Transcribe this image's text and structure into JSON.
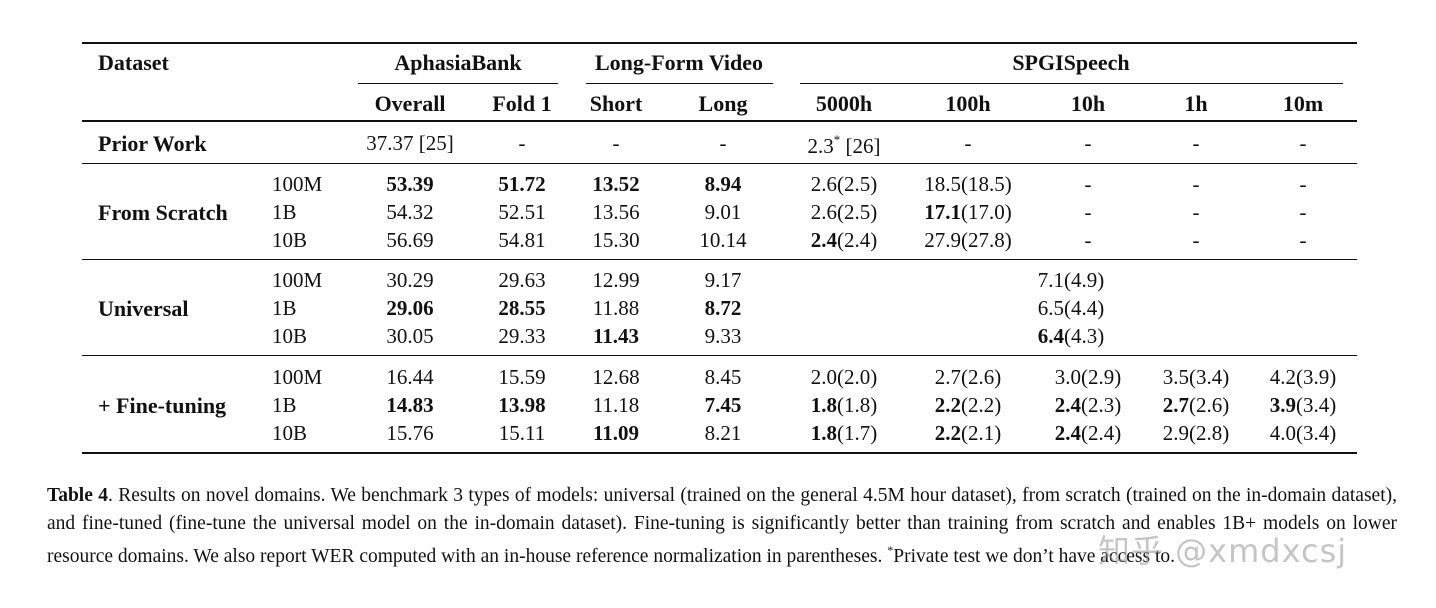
{
  "header": {
    "dataset": "Dataset",
    "groups": {
      "aphasia": "AphasiaBank",
      "longform": "Long-Form Video",
      "spgi": "SPGISpeech"
    },
    "columns": [
      "Overall",
      "Fold 1",
      "Short",
      "Long",
      "5000h",
      "100h",
      "10h",
      "1h",
      "10m"
    ]
  },
  "prior_work": {
    "label": "Prior Work",
    "cells": [
      "37.37 [25]",
      "-",
      "-",
      "-",
      "2.3",
      "-",
      "-",
      "-",
      "-"
    ],
    "spgi_5000h_note": "*",
    "spgi_5000h_ref": "[26]"
  },
  "from_scratch": {
    "label": "From Scratch",
    "rows": [
      {
        "size": "100M",
        "cells": [
          {
            "b": "53.39"
          },
          {
            "b": "51.72"
          },
          {
            "b": "13.52"
          },
          {
            "b": "8.94"
          },
          {
            "n": "2.6(2.5)"
          },
          {
            "n": "18.5(18.5)"
          },
          {
            "n": "-"
          },
          {
            "n": "-"
          },
          {
            "n": "-"
          }
        ]
      },
      {
        "size": "1B",
        "cells": [
          {
            "n": "54.32"
          },
          {
            "n": "52.51"
          },
          {
            "n": "13.56"
          },
          {
            "n": "9.01"
          },
          {
            "n": "2.6(2.5)"
          },
          {
            "b": "17.1",
            "n": "(17.0)"
          },
          {
            "n": "-"
          },
          {
            "n": "-"
          },
          {
            "n": "-"
          }
        ]
      },
      {
        "size": "10B",
        "cells": [
          {
            "n": "56.69"
          },
          {
            "n": "54.81"
          },
          {
            "n": "15.30"
          },
          {
            "n": "10.14"
          },
          {
            "b": "2.4",
            "n": "(2.4)"
          },
          {
            "n": "27.9(27.8)"
          },
          {
            "n": "-"
          },
          {
            "n": "-"
          },
          {
            "n": "-"
          }
        ]
      }
    ]
  },
  "universal": {
    "label": "Universal",
    "rows": [
      {
        "size": "100M",
        "cells": [
          {
            "n": "30.29"
          },
          {
            "n": "29.63"
          },
          {
            "n": "12.99"
          },
          {
            "n": "9.17"
          },
          {
            "n": "7.1(4.9)"
          }
        ]
      },
      {
        "size": "1B",
        "cells": [
          {
            "b": "29.06"
          },
          {
            "b": "28.55"
          },
          {
            "n": "11.88"
          },
          {
            "b": "8.72"
          },
          {
            "n": "6.5(4.4)"
          }
        ]
      },
      {
        "size": "10B",
        "cells": [
          {
            "n": "30.05"
          },
          {
            "n": "29.33"
          },
          {
            "b": "11.43"
          },
          {
            "n": "9.33"
          },
          {
            "b": "6.4",
            "n": "(4.3)"
          }
        ]
      }
    ]
  },
  "fine_tuning": {
    "label": "+ Fine-tuning",
    "rows": [
      {
        "size": "100M",
        "cells": [
          {
            "n": "16.44"
          },
          {
            "n": "15.59"
          },
          {
            "n": "12.68"
          },
          {
            "n": "8.45"
          },
          {
            "n": "2.0(2.0)"
          },
          {
            "n": "2.7(2.6)"
          },
          {
            "n": "3.0(2.9)"
          },
          {
            "n": "3.5(3.4)"
          },
          {
            "n": "4.2(3.9)"
          }
        ]
      },
      {
        "size": "1B",
        "cells": [
          {
            "b": "14.83"
          },
          {
            "b": "13.98"
          },
          {
            "n": "11.18"
          },
          {
            "b": "7.45"
          },
          {
            "b": "1.8",
            "n": "(1.8)"
          },
          {
            "b": "2.2",
            "n": "(2.2)"
          },
          {
            "b": "2.4",
            "n": "(2.3)"
          },
          {
            "b": "2.7",
            "n": "(2.6)"
          },
          {
            "b": "3.9",
            "n": "(3.4)"
          }
        ]
      },
      {
        "size": "10B",
        "cells": [
          {
            "n": "15.76"
          },
          {
            "n": "15.11"
          },
          {
            "b": "11.09"
          },
          {
            "n": "8.21"
          },
          {
            "b": "1.8",
            "n": "(1.7)"
          },
          {
            "b": "2.2",
            "n": "(2.1)"
          },
          {
            "b": "2.4",
            "n": "(2.4)"
          },
          {
            "n": "2.9(2.8)"
          },
          {
            "n": "4.0(3.4)"
          }
        ]
      }
    ]
  },
  "caption": {
    "label": "Table 4",
    "text": ". Results on novel domains. We benchmark 3 types of models: universal (trained on the general 4.5M hour dataset), from scratch (trained on the in-domain dataset), and fine-tuned (fine-tune the universal model on the in-domain dataset). Fine-tuning is significantly better than training from scratch and enables 1B+ models on lower resource domains. We also report WER computed with an in-house reference normalization in parentheses. ",
    "footnote_mark": "*",
    "footnote": "Private test we don’t have access to."
  },
  "watermark": "知乎 @xmdxcsj"
}
